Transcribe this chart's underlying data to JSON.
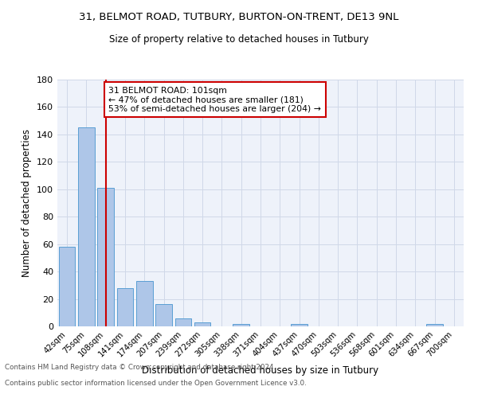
{
  "title1": "31, BELMOT ROAD, TUTBURY, BURTON-ON-TRENT, DE13 9NL",
  "title2": "Size of property relative to detached houses in Tutbury",
  "xlabel": "Distribution of detached houses by size in Tutbury",
  "ylabel": "Number of detached properties",
  "footnote1": "Contains HM Land Registry data © Crown copyright and database right 2024.",
  "footnote2": "Contains public sector information licensed under the Open Government Licence v3.0.",
  "categories": [
    "42sqm",
    "75sqm",
    "108sqm",
    "141sqm",
    "174sqm",
    "207sqm",
    "239sqm",
    "272sqm",
    "305sqm",
    "338sqm",
    "371sqm",
    "404sqm",
    "437sqm",
    "470sqm",
    "503sqm",
    "536sqm",
    "568sqm",
    "601sqm",
    "634sqm",
    "667sqm",
    "700sqm"
  ],
  "values": [
    58,
    145,
    101,
    28,
    33,
    16,
    6,
    3,
    0,
    2,
    0,
    0,
    2,
    0,
    0,
    0,
    0,
    0,
    0,
    2,
    0
  ],
  "bar_color": "#aec6e8",
  "bar_edgecolor": "#5a9fd4",
  "vline_x_index": 2,
  "vline_color": "#cc0000",
  "annotation_line1": "31 BELMOT ROAD: 101sqm",
  "annotation_line2": "← 47% of detached houses are smaller (181)",
  "annotation_line3": "53% of semi-detached houses are larger (204) →",
  "annotation_box_edgecolor": "#cc0000",
  "annotation_box_facecolor": "#ffffff",
  "ylim": [
    0,
    180
  ],
  "yticks": [
    0,
    20,
    40,
    60,
    80,
    100,
    120,
    140,
    160,
    180
  ],
  "grid_color": "#d0d8e8",
  "background_color": "#eef2fa"
}
